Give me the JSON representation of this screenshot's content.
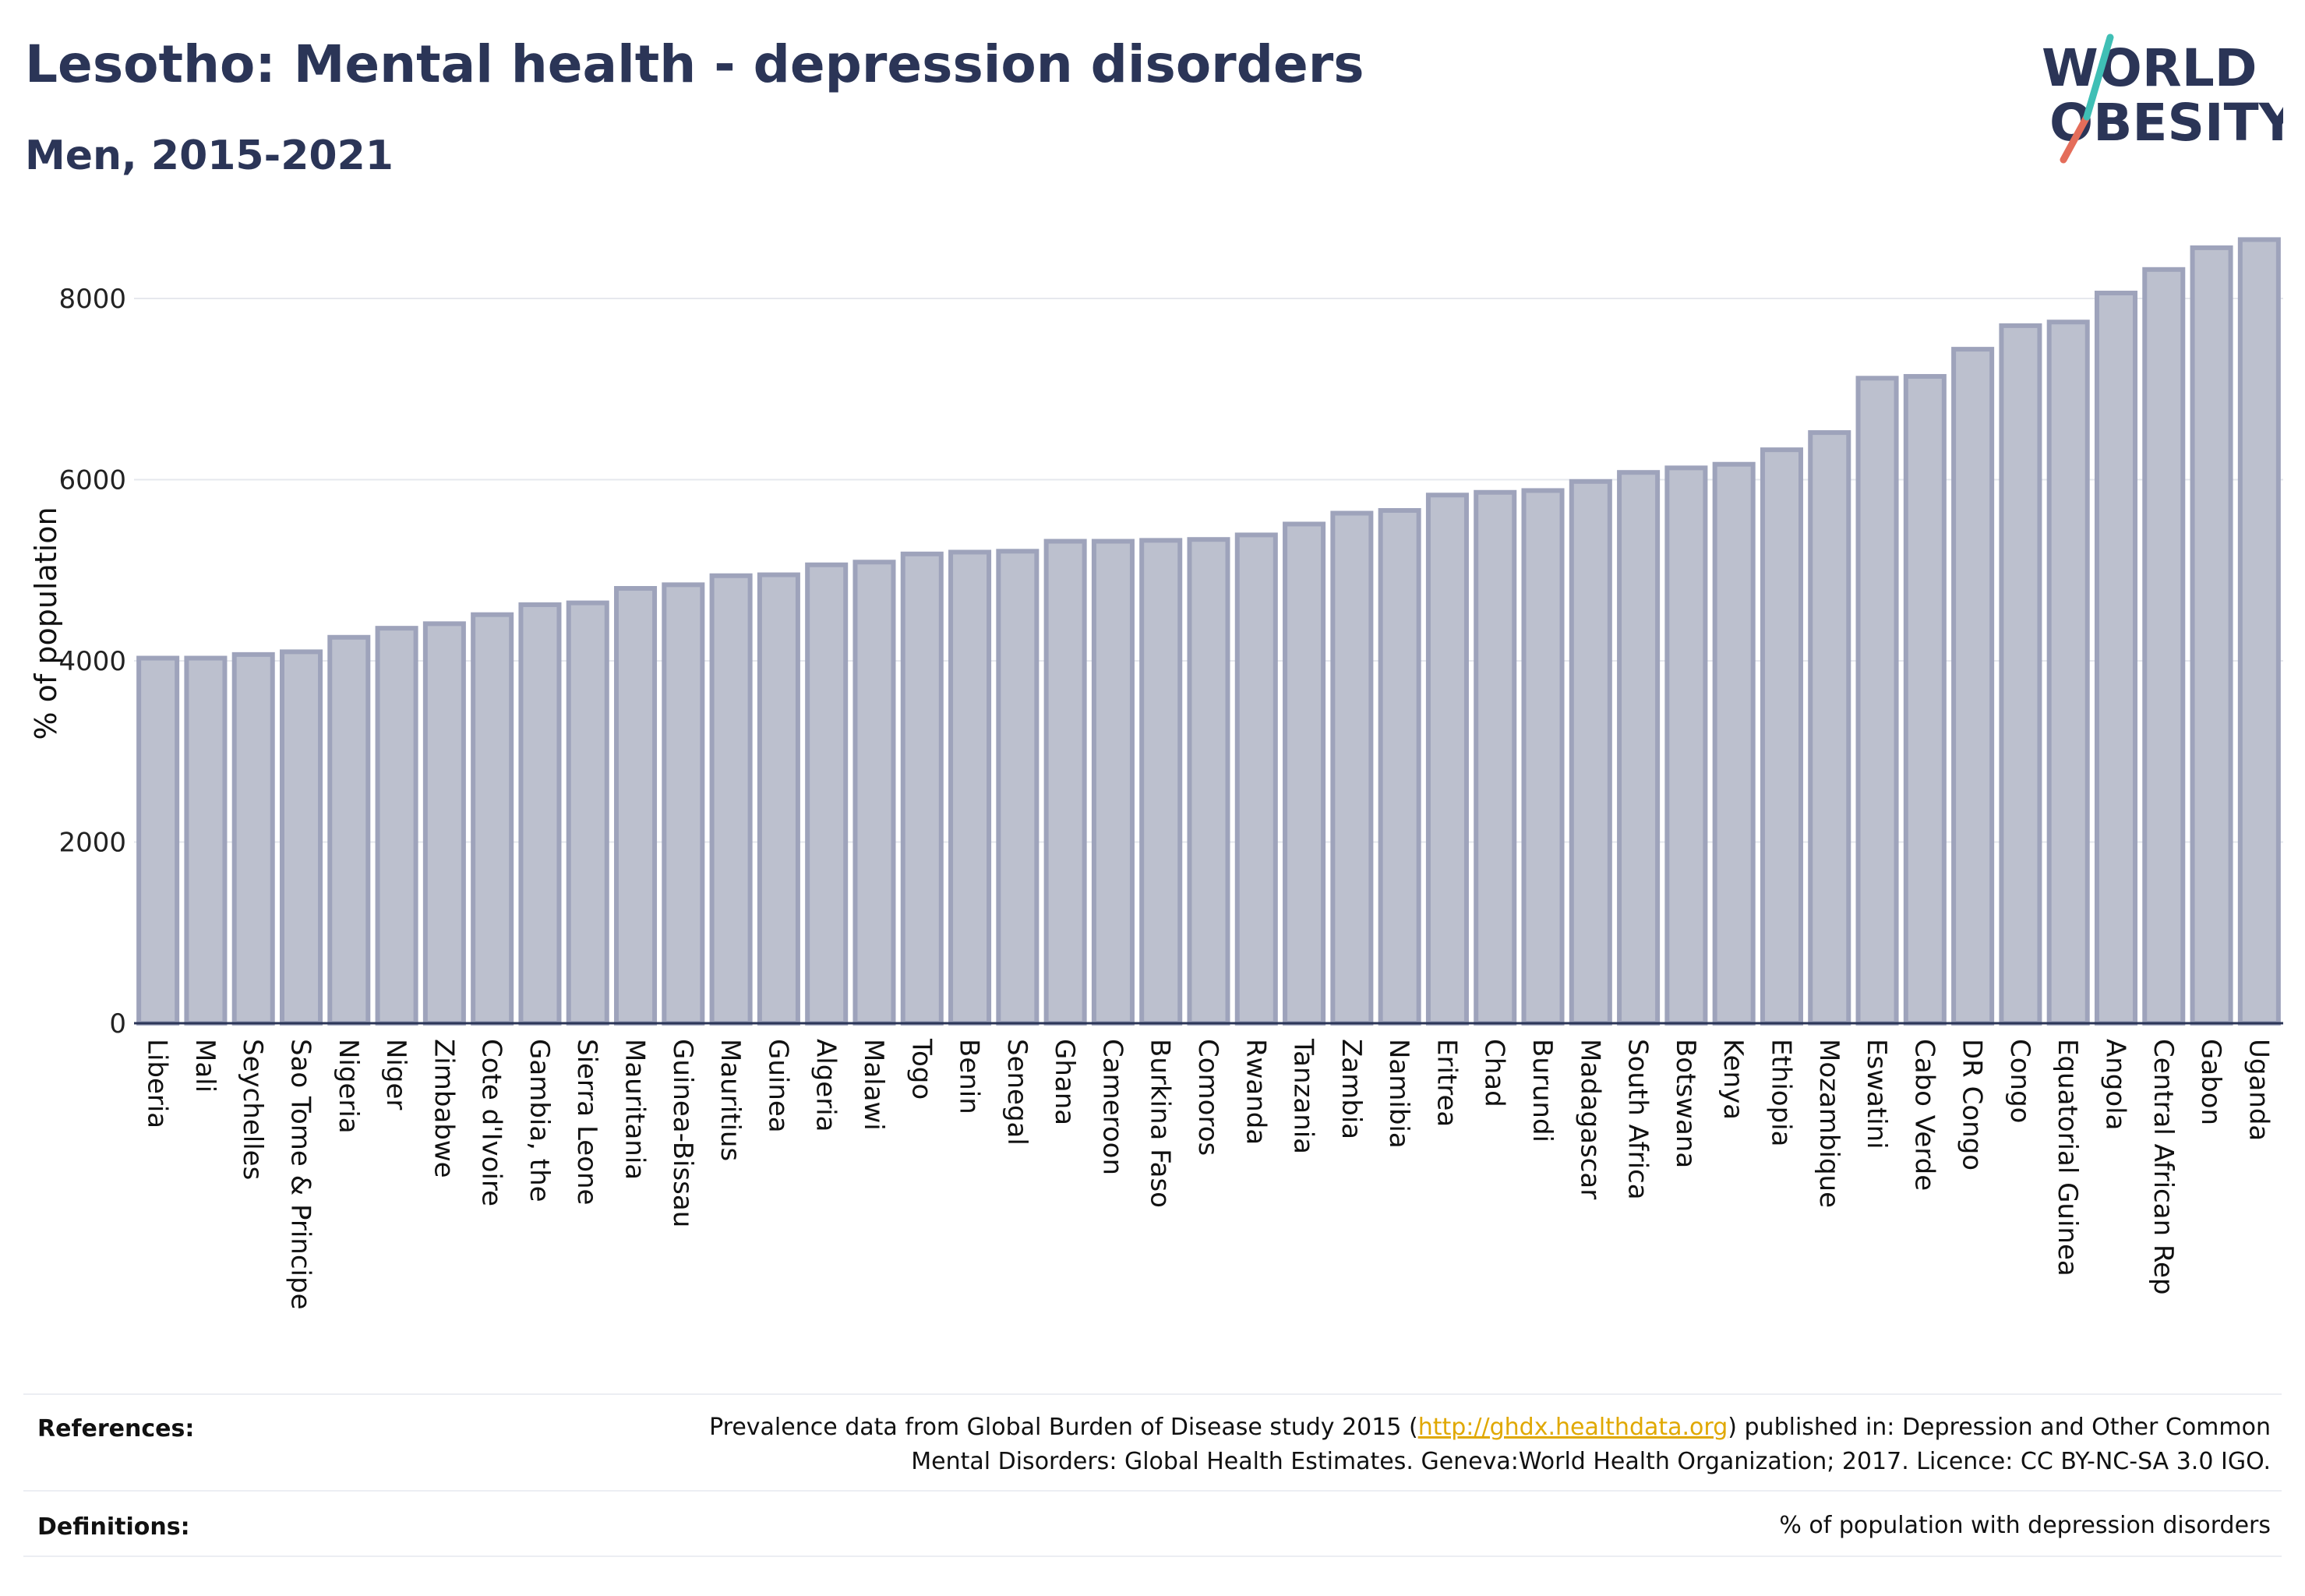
{
  "header": {
    "title": "Lesotho: Mental health - depression disorders",
    "subtitle": "Men, 2015-2021"
  },
  "logo": {
    "line1": "WORLD",
    "line2": "OBESITY"
  },
  "chart_data": {
    "type": "bar",
    "ylabel": "% of population",
    "xlabel": "",
    "ylim": [
      0,
      8800
    ],
    "yticks": [
      0,
      2000,
      4000,
      6000,
      8000
    ],
    "grid": true,
    "bar_color": "#bcc0ce",
    "bar_edge_color": "#9ea3bb",
    "categories": [
      "Liberia",
      "Mali",
      "Seychelles",
      "Sao Tome & Principe",
      "Nigeria",
      "Niger",
      "Zimbabwe",
      "Cote d'Ivoire",
      "Gambia, the",
      "Sierra Leone",
      "Mauritania",
      "Guinea-Bissau",
      "Mauritius",
      "Guinea",
      "Algeria",
      "Malawi",
      "Togo",
      "Benin",
      "Senegal",
      "Ghana",
      "Cameroon",
      "Burkina Faso",
      "Comoros",
      "Rwanda",
      "Tanzania",
      "Zambia",
      "Namibia",
      "Eritrea",
      "Chad",
      "Burundi",
      "Madagascar",
      "South Africa",
      "Botswana",
      "Kenya",
      "Ethiopia",
      "Mozambique",
      "Eswatini",
      "Cabo Verde",
      "DR Congo",
      "Congo",
      "Equatorial Guinea",
      "Angola",
      "Central African Rep",
      "Gabon",
      "Uganda"
    ],
    "values": [
      4030,
      4030,
      4070,
      4100,
      4260,
      4360,
      4410,
      4510,
      4620,
      4640,
      4800,
      4840,
      4940,
      4950,
      5060,
      5090,
      5180,
      5200,
      5210,
      5320,
      5320,
      5330,
      5340,
      5390,
      5510,
      5630,
      5660,
      5830,
      5860,
      5880,
      5980,
      6080,
      6130,
      6170,
      6330,
      6520,
      7120,
      7140,
      7440,
      7700,
      7740,
      8060,
      8320,
      8560,
      8650
    ]
  },
  "footer": {
    "references_label": "References:",
    "references_pre": "Prevalence data from Global Burden of Disease study 2015 (",
    "references_link": "http://ghdx.healthdata.org",
    "references_post": ") published in: Depression and Other Common",
    "references_line2": "Mental Disorders: Global Health Estimates. Geneva:World Health Organization; 2017. Licence: CC BY-NC-SA 3.0 IGO.",
    "definitions_label": "Definitions:",
    "definitions_text": "% of population with depression disorders"
  }
}
